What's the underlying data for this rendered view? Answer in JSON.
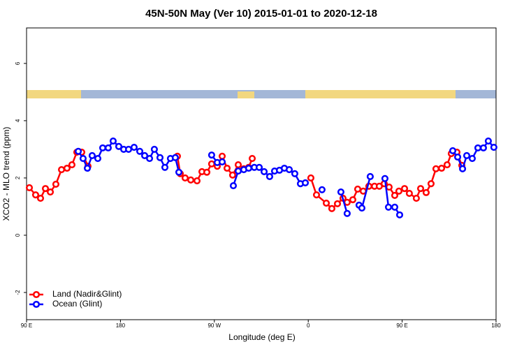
{
  "chart_data": {
    "type": "line",
    "title": "45N-50N May (Ver 10)   2015-01-01 to 2020-12-18",
    "x_label": "Longitude (deg E)",
    "y_label": "XCO2 - MLO trend (ppm)",
    "xlim": [
      90,
      540
    ],
    "ylim": [
      -2.95,
      7.24
    ],
    "xticks": [
      {
        "value": 90,
        "label": "90 E"
      },
      180,
      {
        "value": 270,
        "label": "90 W"
      },
      {
        "value": 360,
        "label": "0"
      },
      {
        "value": 450,
        "label": "90 E"
      },
      {
        "value": 540,
        "label": "180"
      }
    ],
    "yticks": [
      -2,
      0,
      2,
      4,
      6
    ],
    "legend": "bottom-left",
    "series": [
      {
        "name": "Land (Nadir&Glint)",
        "color": "#ff0000",
        "x": [
          92.7,
          98.7,
          103.4,
          108.1,
          112.8,
          118.1,
          123.5,
          128.8,
          133.5,
          138.2,
          142.9,
          148.9,
          null,
          234.6,
          237.3,
          242.0,
          247.4,
          253.4,
          258.1,
          262.8,
          267.4,
          272.8,
          277.5,
          282.2,
          287.5,
          292.9,
          298.2,
          302.9,
          306.3,
          null,
          362.5,
          367.9,
          377.3,
          382.6,
          388.0,
          393.3,
          397.3,
          402.7,
          407.4,
          412.7,
          418.1,
          423.5,
          428.1,
          432.8,
          437.5,
          442.9,
          446.9,
          452.3,
          456.9,
          463.6,
          467.7,
          473.0,
          477.7,
          482.4,
          487.8,
          493.1,
          497.1,
          502.5,
          507.2
        ],
        "values": [
          1.66,
          1.41,
          1.29,
          1.63,
          1.51,
          1.78,
          2.29,
          2.34,
          2.46,
          2.9,
          2.9,
          2.41,
          null,
          2.76,
          2.15,
          2.0,
          1.93,
          1.9,
          2.22,
          2.2,
          2.49,
          2.41,
          2.76,
          2.34,
          2.1,
          2.46,
          2.32,
          2.37,
          2.68,
          null,
          2.0,
          1.41,
          1.12,
          0.93,
          1.1,
          1.29,
          1.15,
          1.24,
          1.61,
          1.54,
          1.71,
          1.71,
          1.71,
          1.8,
          1.68,
          1.39,
          1.54,
          1.63,
          1.46,
          1.29,
          1.63,
          1.49,
          1.8,
          2.32,
          2.34,
          2.46,
          2.85,
          2.9,
          2.44
        ]
      },
      {
        "name": "Ocean (Glint)",
        "color": "#0000ff",
        "x": [
          139.6,
          144.2,
          148.3,
          152.9,
          158.3,
          163.0,
          168.3,
          173.0,
          178.4,
          183.1,
          187.8,
          193.1,
          198.5,
          203.2,
          207.9,
          212.5,
          217.9,
          222.6,
          227.9,
          232.6,
          236.0,
          null,
          267.4,
          272.8,
          277.5,
          null,
          288.2,
          292.9,
          298.2,
          302.9,
          308.3,
          313.0,
          317.7,
          323.0,
          327.7,
          332.4,
          337.1,
          341.8,
          347.1,
          352.5,
          357.2,
          null,
          373.2,
          null,
          391.3,
          397.3,
          null,
          408.7,
          411.4,
          419.4,
          null,
          433.5,
          436.9,
          442.9,
          447.6,
          null,
          498.5,
          503.2,
          507.9,
          511.9,
          517.2,
          522.6,
          527.9,
          532.6,
          537.9
        ],
        "values": [
          2.93,
          2.68,
          2.34,
          2.78,
          2.68,
          3.05,
          3.05,
          3.29,
          3.1,
          3.0,
          3.0,
          3.07,
          2.93,
          2.78,
          2.68,
          3.0,
          2.71,
          2.37,
          2.68,
          2.71,
          2.2,
          null,
          2.8,
          2.54,
          2.56,
          null,
          1.73,
          2.24,
          2.29,
          2.34,
          2.37,
          2.37,
          2.22,
          2.05,
          2.24,
          2.27,
          2.34,
          2.29,
          2.15,
          1.8,
          1.83,
          null,
          1.59,
          null,
          1.51,
          0.76,
          null,
          1.05,
          0.95,
          2.05,
          null,
          1.98,
          0.98,
          0.98,
          0.71,
          null,
          2.95,
          2.73,
          2.32,
          2.78,
          2.68,
          3.05,
          3.05,
          3.29,
          3.07
        ]
      }
    ]
  }
}
